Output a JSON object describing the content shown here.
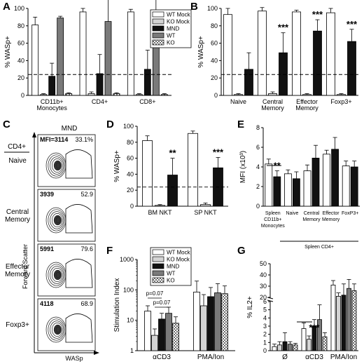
{
  "panels": {
    "A": "A",
    "B": "B",
    "C": "C",
    "D": "D",
    "E": "E",
    "F": "F",
    "G": "G"
  },
  "colors": {
    "white_bar": "#ffffff",
    "light_gray": "#d4d4d4",
    "black_bar": "#111111",
    "dark_gray": "#7a7a7a",
    "checker": "#9a9a9a"
  },
  "legend_A": [
    "WT Mock",
    "KO Mock",
    "MND",
    "WT",
    "KO"
  ],
  "legend_F": [
    "WT Mock",
    "KO Mock",
    "MND",
    "WT",
    "KO"
  ],
  "chart_data": [
    {
      "panel": "A",
      "type": "bar",
      "ylabel": "% WASp+",
      "ylim": [
        0,
        100
      ],
      "yticks": [
        "0",
        "20",
        "40",
        "60",
        "80",
        "100"
      ],
      "categories": [
        "CD11b+\nMonocytes",
        "CD4+",
        "CD8+"
      ],
      "series": [
        {
          "name": "WT Mock",
          "values": [
            81,
            96,
            96
          ],
          "err": [
            9,
            4,
            3
          ]
        },
        {
          "name": "KO Mock",
          "values": [
            1,
            2,
            1
          ],
          "err": [
            1,
            2,
            1
          ]
        },
        {
          "name": "MND",
          "values": [
            22,
            25,
            30
          ],
          "err": [
            15,
            22,
            22
          ]
        },
        {
          "name": "WT",
          "values": [
            89,
            85,
            91
          ],
          "err": [
            2,
            26,
            24
          ]
        },
        {
          "name": "KO",
          "values": [
            2,
            2,
            1
          ],
          "err": [
            1,
            1,
            1
          ]
        }
      ],
      "threshold": 24
    },
    {
      "panel": "B",
      "type": "bar",
      "ylabel": "% WASp+",
      "ylim": [
        0,
        100
      ],
      "yticks": [
        "0",
        "20",
        "40",
        "60",
        "80",
        "100"
      ],
      "categories": [
        "Naive",
        "Central\nMemory",
        "Effector\nMemory",
        "Foxp3+"
      ],
      "series": [
        {
          "name": "WT Mock",
          "values": [
            93,
            97,
            96,
            95
          ],
          "err": [
            7,
            4,
            2,
            5
          ]
        },
        {
          "name": "KO Mock",
          "values": [
            1,
            2,
            1,
            1
          ],
          "err": [
            1,
            2,
            1,
            1
          ]
        },
        {
          "name": "MND",
          "values": [
            30,
            49,
            74,
            62
          ],
          "err": [
            19,
            23,
            13,
            14
          ]
        }
      ],
      "annotations": [
        "",
        "***",
        "***",
        "***"
      ],
      "threshold": 24
    },
    {
      "panel": "D",
      "type": "bar",
      "ylabel": "% WASp+",
      "ylim": [
        0,
        100
      ],
      "yticks": [
        "0",
        "20",
        "40",
        "60",
        "80",
        "100"
      ],
      "categories": [
        "BM NKT",
        "SP NKT"
      ],
      "series": [
        {
          "name": "WT Mock",
          "values": [
            82,
            91
          ],
          "err": [
            6,
            3
          ]
        },
        {
          "name": "KO Mock",
          "values": [
            1,
            2
          ],
          "err": [
            1,
            2
          ]
        },
        {
          "name": "MND",
          "values": [
            39,
            48
          ],
          "err": [
            21,
            13
          ]
        }
      ],
      "annotations": [
        "**",
        "***"
      ],
      "threshold": 24
    },
    {
      "panel": "E",
      "type": "bar",
      "ylabel": "MFI (x10³)",
      "ylim": [
        0,
        8
      ],
      "yticks": [
        "0",
        "2",
        "4",
        "6",
        "8"
      ],
      "categories": [
        "Spleen\nCD11b+\nMonocytes",
        "Naive",
        "Central\nMemory",
        "Effector\nMemory",
        "FoxP3+"
      ],
      "group_label": "Spleen CD4+",
      "series": [
        {
          "name": "WT Mock",
          "values": [
            4.3,
            3.3,
            3.6,
            5.3,
            4.1
          ],
          "err": [
            0.5,
            0.4,
            0.6,
            0.4,
            0.5
          ]
        },
        {
          "name": "MND",
          "values": [
            3.0,
            2.8,
            4.9,
            5.8,
            4.0
          ],
          "err": [
            0.6,
            0.7,
            1.3,
            1.2,
            0.6
          ]
        }
      ],
      "annotations": [
        "**",
        "",
        "",
        "",
        ""
      ]
    },
    {
      "panel": "F",
      "type": "bar",
      "ylabel": "Stimulation Index",
      "yscale": "log",
      "ylim": [
        1,
        1000
      ],
      "yticks": [
        "1",
        "10",
        "100",
        "1000"
      ],
      "categories": [
        "αCD3",
        "PMA/Ion"
      ],
      "series": [
        {
          "name": "WT Mock",
          "values": [
            20,
            85
          ],
          "err": [
            10,
            110
          ]
        },
        {
          "name": "KO Mock",
          "values": [
            3.2,
            30
          ],
          "err": [
            2,
            40
          ]
        },
        {
          "name": "MND",
          "values": [
            11,
            60
          ],
          "err": [
            6,
            60
          ]
        },
        {
          "name": "WT",
          "values": [
            17,
            80
          ],
          "err": [
            10,
            80
          ]
        },
        {
          "name": "KO",
          "values": [
            8,
            75
          ],
          "err": [
            5,
            60
          ]
        }
      ],
      "annotations": [
        "p=0.07",
        "p=0.07"
      ]
    },
    {
      "panel": "G",
      "type": "bar",
      "ylabel": "% IL2+",
      "ylim": [
        0,
        50
      ],
      "yticks": [
        "0",
        "1",
        "2",
        "3",
        "4",
        "5",
        "6",
        "20",
        "30",
        "40",
        "50"
      ],
      "categories": [
        "Ø",
        "αCD3",
        "PMA/Ion"
      ],
      "series": [
        {
          "name": "WT Mock",
          "values": [
            0.5,
            2.7,
            31
          ],
          "err": [
            0.3,
            0.7,
            4
          ]
        },
        {
          "name": "KO Mock",
          "values": [
            0.7,
            1.4,
            21
          ],
          "err": [
            0.4,
            0.4,
            3
          ]
        },
        {
          "name": "MND",
          "values": [
            1.1,
            3.0,
            22
          ],
          "err": [
            1.1,
            0.8,
            10
          ]
        },
        {
          "name": "WT",
          "values": [
            0.8,
            3.8,
            28
          ],
          "err": [
            0.3,
            1.8,
            8
          ]
        },
        {
          "name": "KO",
          "values": [
            0.7,
            1.7,
            26
          ],
          "err": [
            0.2,
            0.5,
            6
          ]
        }
      ],
      "annotations": [
        "",
        "***",
        ""
      ]
    }
  ],
  "flow": {
    "title": "MND",
    "row_header": "CD4+",
    "rows": [
      {
        "label": "Naive",
        "mfi": "MFI=3114",
        "pct": "33.1%"
      },
      {
        "label": "Central\nMemory",
        "mfi": "3939",
        "pct": "52.9"
      },
      {
        "label": "Effector\nMemory",
        "mfi": "5991",
        "pct": "79.6"
      },
      {
        "label": "Foxp3+",
        "mfi": "4118",
        "pct": "68.9"
      }
    ],
    "ylabel": "Forward Scatter",
    "xlabel": "WASp"
  }
}
